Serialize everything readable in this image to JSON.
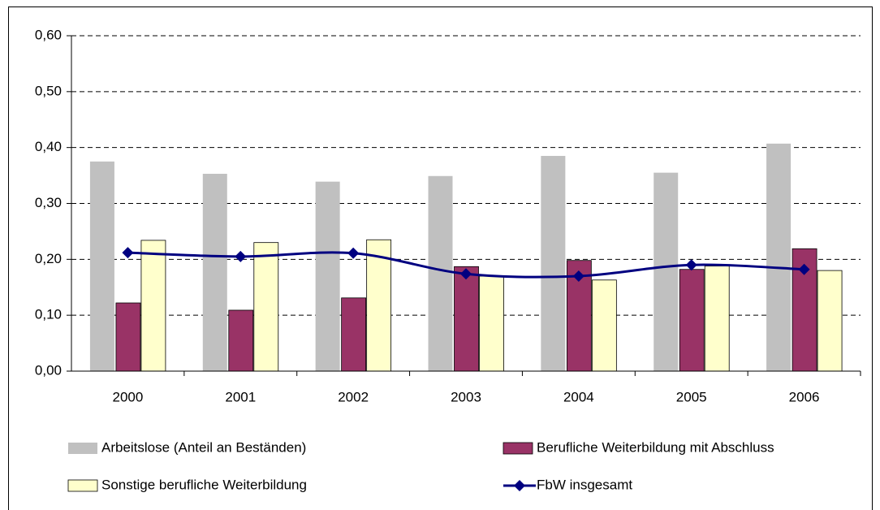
{
  "chart_data": {
    "type": "bar",
    "categories": [
      "2000",
      "2001",
      "2002",
      "2003",
      "2004",
      "2005",
      "2006"
    ],
    "series": [
      {
        "name": "Arbeitslose (Anteil an Beständen)",
        "color": "#c0c0c0",
        "values": [
          0.375,
          0.353,
          0.339,
          0.349,
          0.385,
          0.355,
          0.407
        ]
      },
      {
        "name": "Berufliche Weiterbildung mit Abschluss",
        "color": "#993366",
        "values": [
          0.122,
          0.109,
          0.131,
          0.187,
          0.198,
          0.182,
          0.219
        ]
      },
      {
        "name": "Sonstige berufliche Weiterbildung",
        "color": "#ffffcc",
        "values": [
          0.234,
          0.23,
          0.235,
          0.17,
          0.163,
          0.188,
          0.18
        ]
      },
      {
        "name": "FbW insgesamt",
        "color": "#000080",
        "type": "line",
        "values": [
          0.212,
          0.205,
          0.211,
          0.174,
          0.17,
          0.19,
          0.182
        ]
      }
    ],
    "ylim": [
      0,
      0.6
    ],
    "yticks": [
      {
        "value": 0,
        "label": "0,00"
      },
      {
        "value": 0.1,
        "label": "0,10"
      },
      {
        "value": 0.2,
        "label": "0,20"
      },
      {
        "value": 0.3,
        "label": "0,30"
      },
      {
        "value": 0.4,
        "label": "0,40"
      },
      {
        "value": 0.5,
        "label": "0,50"
      },
      {
        "value": 0.6,
        "label": "0,60"
      }
    ],
    "grid": true
  }
}
